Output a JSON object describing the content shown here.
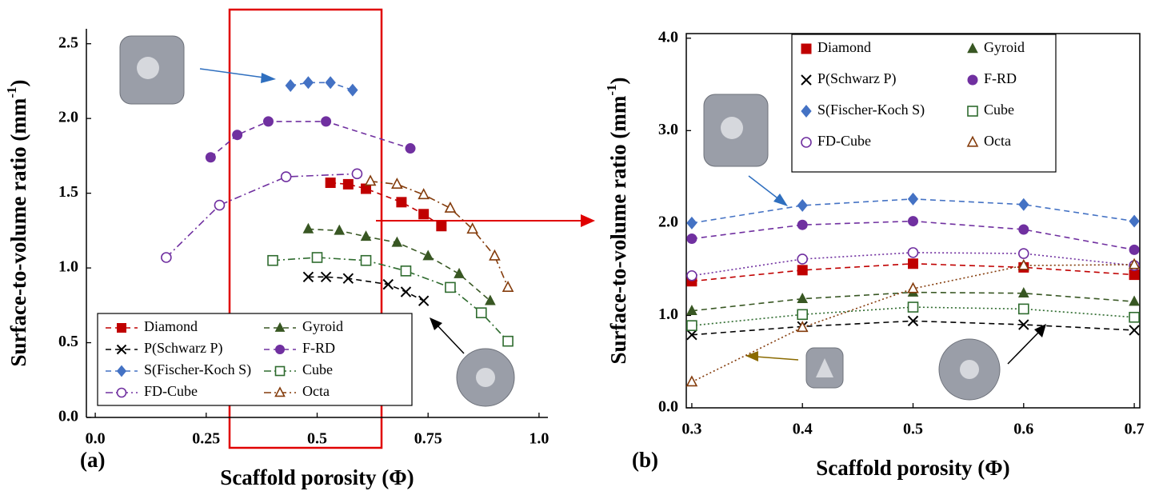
{
  "chart_data": [
    {
      "type": "line",
      "panel_label": "(a)",
      "xlabel": "Scaffold porosity (Φ)",
      "ylabel": [
        "Surface-to-volume ratio (mm",
        "-1",
        ")"
      ],
      "xlim": [
        -0.02,
        1.02
      ],
      "ylim": [
        0,
        2.6
      ],
      "xticks": [
        {
          "value": 0,
          "label": "0.0"
        },
        0.25,
        0.5,
        0.75,
        {
          "value": 1,
          "label": "1.0"
        }
      ],
      "yticks": [
        {
          "value": 0,
          "label": "0.0"
        },
        0.5,
        {
          "value": 1,
          "label": "1.0"
        },
        1.5,
        {
          "value": 2,
          "label": "2.0"
        },
        2.5
      ],
      "legend": "lower left",
      "legend_lines": true,
      "series": [
        {
          "name": "Diamond",
          "color": "#c00000",
          "marker": "square",
          "linestyle": "dashed",
          "x": [
            0.53,
            0.57,
            0.61,
            0.69,
            0.74,
            0.78
          ],
          "values": [
            1.57,
            1.56,
            1.53,
            1.44,
            1.36,
            1.28
          ]
        },
        {
          "name": "Gyroid",
          "color": "#385723",
          "marker": "triangle",
          "linestyle": "dashed",
          "x": [
            0.48,
            0.55,
            0.61,
            0.68,
            0.75,
            0.82,
            0.89
          ],
          "values": [
            1.26,
            1.25,
            1.21,
            1.17,
            1.08,
            0.96,
            0.78
          ]
        },
        {
          "name": "P(Schwarz P)",
          "color": "#000000",
          "marker": "x",
          "linestyle": "dashed",
          "x": [
            0.48,
            0.52,
            0.57,
            0.66,
            0.7,
            0.74
          ],
          "values": [
            0.94,
            0.94,
            0.93,
            0.89,
            0.84,
            0.78
          ]
        },
        {
          "name": "F-RD",
          "color": "#7030a0",
          "marker": "circle",
          "linestyle": "dashed",
          "x": [
            0.26,
            0.32,
            0.39,
            0.52,
            0.71
          ],
          "values": [
            1.74,
            1.89,
            1.98,
            1.98,
            1.8
          ]
        },
        {
          "name": "S(Fischer-Koch S)",
          "color": "#4472c4",
          "marker": "diamond",
          "linestyle": "dashed",
          "x": [
            0.44,
            0.48,
            0.53,
            0.58
          ],
          "values": [
            2.22,
            2.24,
            2.24,
            2.19
          ]
        },
        {
          "name": "Cube",
          "color": "#2e6b2e",
          "marker": "open-square",
          "linestyle": "dashdot",
          "x": [
            0.4,
            0.5,
            0.61,
            0.7,
            0.8,
            0.87,
            0.93
          ],
          "values": [
            1.05,
            1.07,
            1.05,
            0.98,
            0.87,
            0.7,
            0.51
          ]
        },
        {
          "name": "FD-Cube",
          "color": "#7030a0",
          "marker": "open-circle",
          "linestyle": "dashdot",
          "x": [
            0.16,
            0.28,
            0.43,
            0.59
          ],
          "values": [
            1.07,
            1.42,
            1.61,
            1.63
          ]
        },
        {
          "name": "Octa",
          "color": "#843c0c",
          "marker": "open-triangle",
          "linestyle": "dashdot",
          "x": [
            0.62,
            0.68,
            0.74,
            0.8,
            0.85,
            0.9,
            0.93
          ],
          "values": [
            1.58,
            1.56,
            1.49,
            1.4,
            1.26,
            1.08,
            0.87
          ]
        }
      ]
    },
    {
      "type": "line",
      "panel_label": "(b)",
      "xlabel": "Scaffold porosity (Φ)",
      "ylabel": [
        "Surface-to-volume ratio (mm",
        "-1",
        ")"
      ],
      "xlim": [
        0.295,
        0.705
      ],
      "ylim": [
        0,
        4.05
      ],
      "xticks": [
        0.3,
        0.4,
        0.5,
        0.6,
        0.7
      ],
      "yticks": [
        {
          "value": 0,
          "label": "0.0"
        },
        {
          "value": 1,
          "label": "1.0"
        },
        {
          "value": 2,
          "label": "2.0"
        },
        {
          "value": 3,
          "label": "3.0"
        },
        {
          "value": 4,
          "label": "4.0"
        }
      ],
      "legend": "upper center",
      "legend_lines": false,
      "series": [
        {
          "name": "Diamond",
          "color": "#c00000",
          "marker": "square",
          "linestyle": "dashed",
          "x": [
            0.3,
            0.4,
            0.5,
            0.6,
            0.7
          ],
          "values": [
            1.37,
            1.49,
            1.56,
            1.52,
            1.44
          ]
        },
        {
          "name": "Gyroid",
          "color": "#385723",
          "marker": "triangle",
          "linestyle": "dashed",
          "x": [
            0.3,
            0.4,
            0.5,
            0.6,
            0.7
          ],
          "values": [
            1.05,
            1.18,
            1.25,
            1.24,
            1.15
          ]
        },
        {
          "name": "P(Schwarz P)",
          "color": "#000000",
          "marker": "x",
          "linestyle": "dashed",
          "x": [
            0.3,
            0.4,
            0.5,
            0.6,
            0.7
          ],
          "values": [
            0.79,
            0.88,
            0.94,
            0.9,
            0.84
          ]
        },
        {
          "name": "F-RD",
          "color": "#7030a0",
          "marker": "circle",
          "linestyle": "dashed",
          "x": [
            0.3,
            0.4,
            0.5,
            0.6,
            0.7
          ],
          "values": [
            1.83,
            1.98,
            2.02,
            1.93,
            1.71
          ]
        },
        {
          "name": "S(Fischer-Koch S)",
          "color": "#4472c4",
          "marker": "diamond",
          "linestyle": "dashed",
          "x": [
            0.3,
            0.4,
            0.5,
            0.6,
            0.7
          ],
          "values": [
            2.0,
            2.19,
            2.26,
            2.2,
            2.02
          ]
        },
        {
          "name": "Cube",
          "color": "#2e6b2e",
          "marker": "open-square",
          "linestyle": "dotted",
          "x": [
            0.3,
            0.4,
            0.5,
            0.6,
            0.7
          ],
          "values": [
            0.89,
            1.01,
            1.09,
            1.07,
            0.98
          ]
        },
        {
          "name": "FD-Cube",
          "color": "#7030a0",
          "marker": "open-circle",
          "linestyle": "dotted",
          "x": [
            0.3,
            0.4,
            0.5,
            0.6,
            0.7
          ],
          "values": [
            1.43,
            1.61,
            1.68,
            1.67,
            1.54
          ]
        },
        {
          "name": "Octa",
          "color": "#843c0c",
          "marker": "open-triangle",
          "linestyle": "dotted",
          "x": [
            0.3,
            0.4,
            0.5,
            0.6,
            0.7
          ],
          "values": [
            0.28,
            0.87,
            1.29,
            1.54,
            1.55
          ]
        }
      ]
    }
  ]
}
